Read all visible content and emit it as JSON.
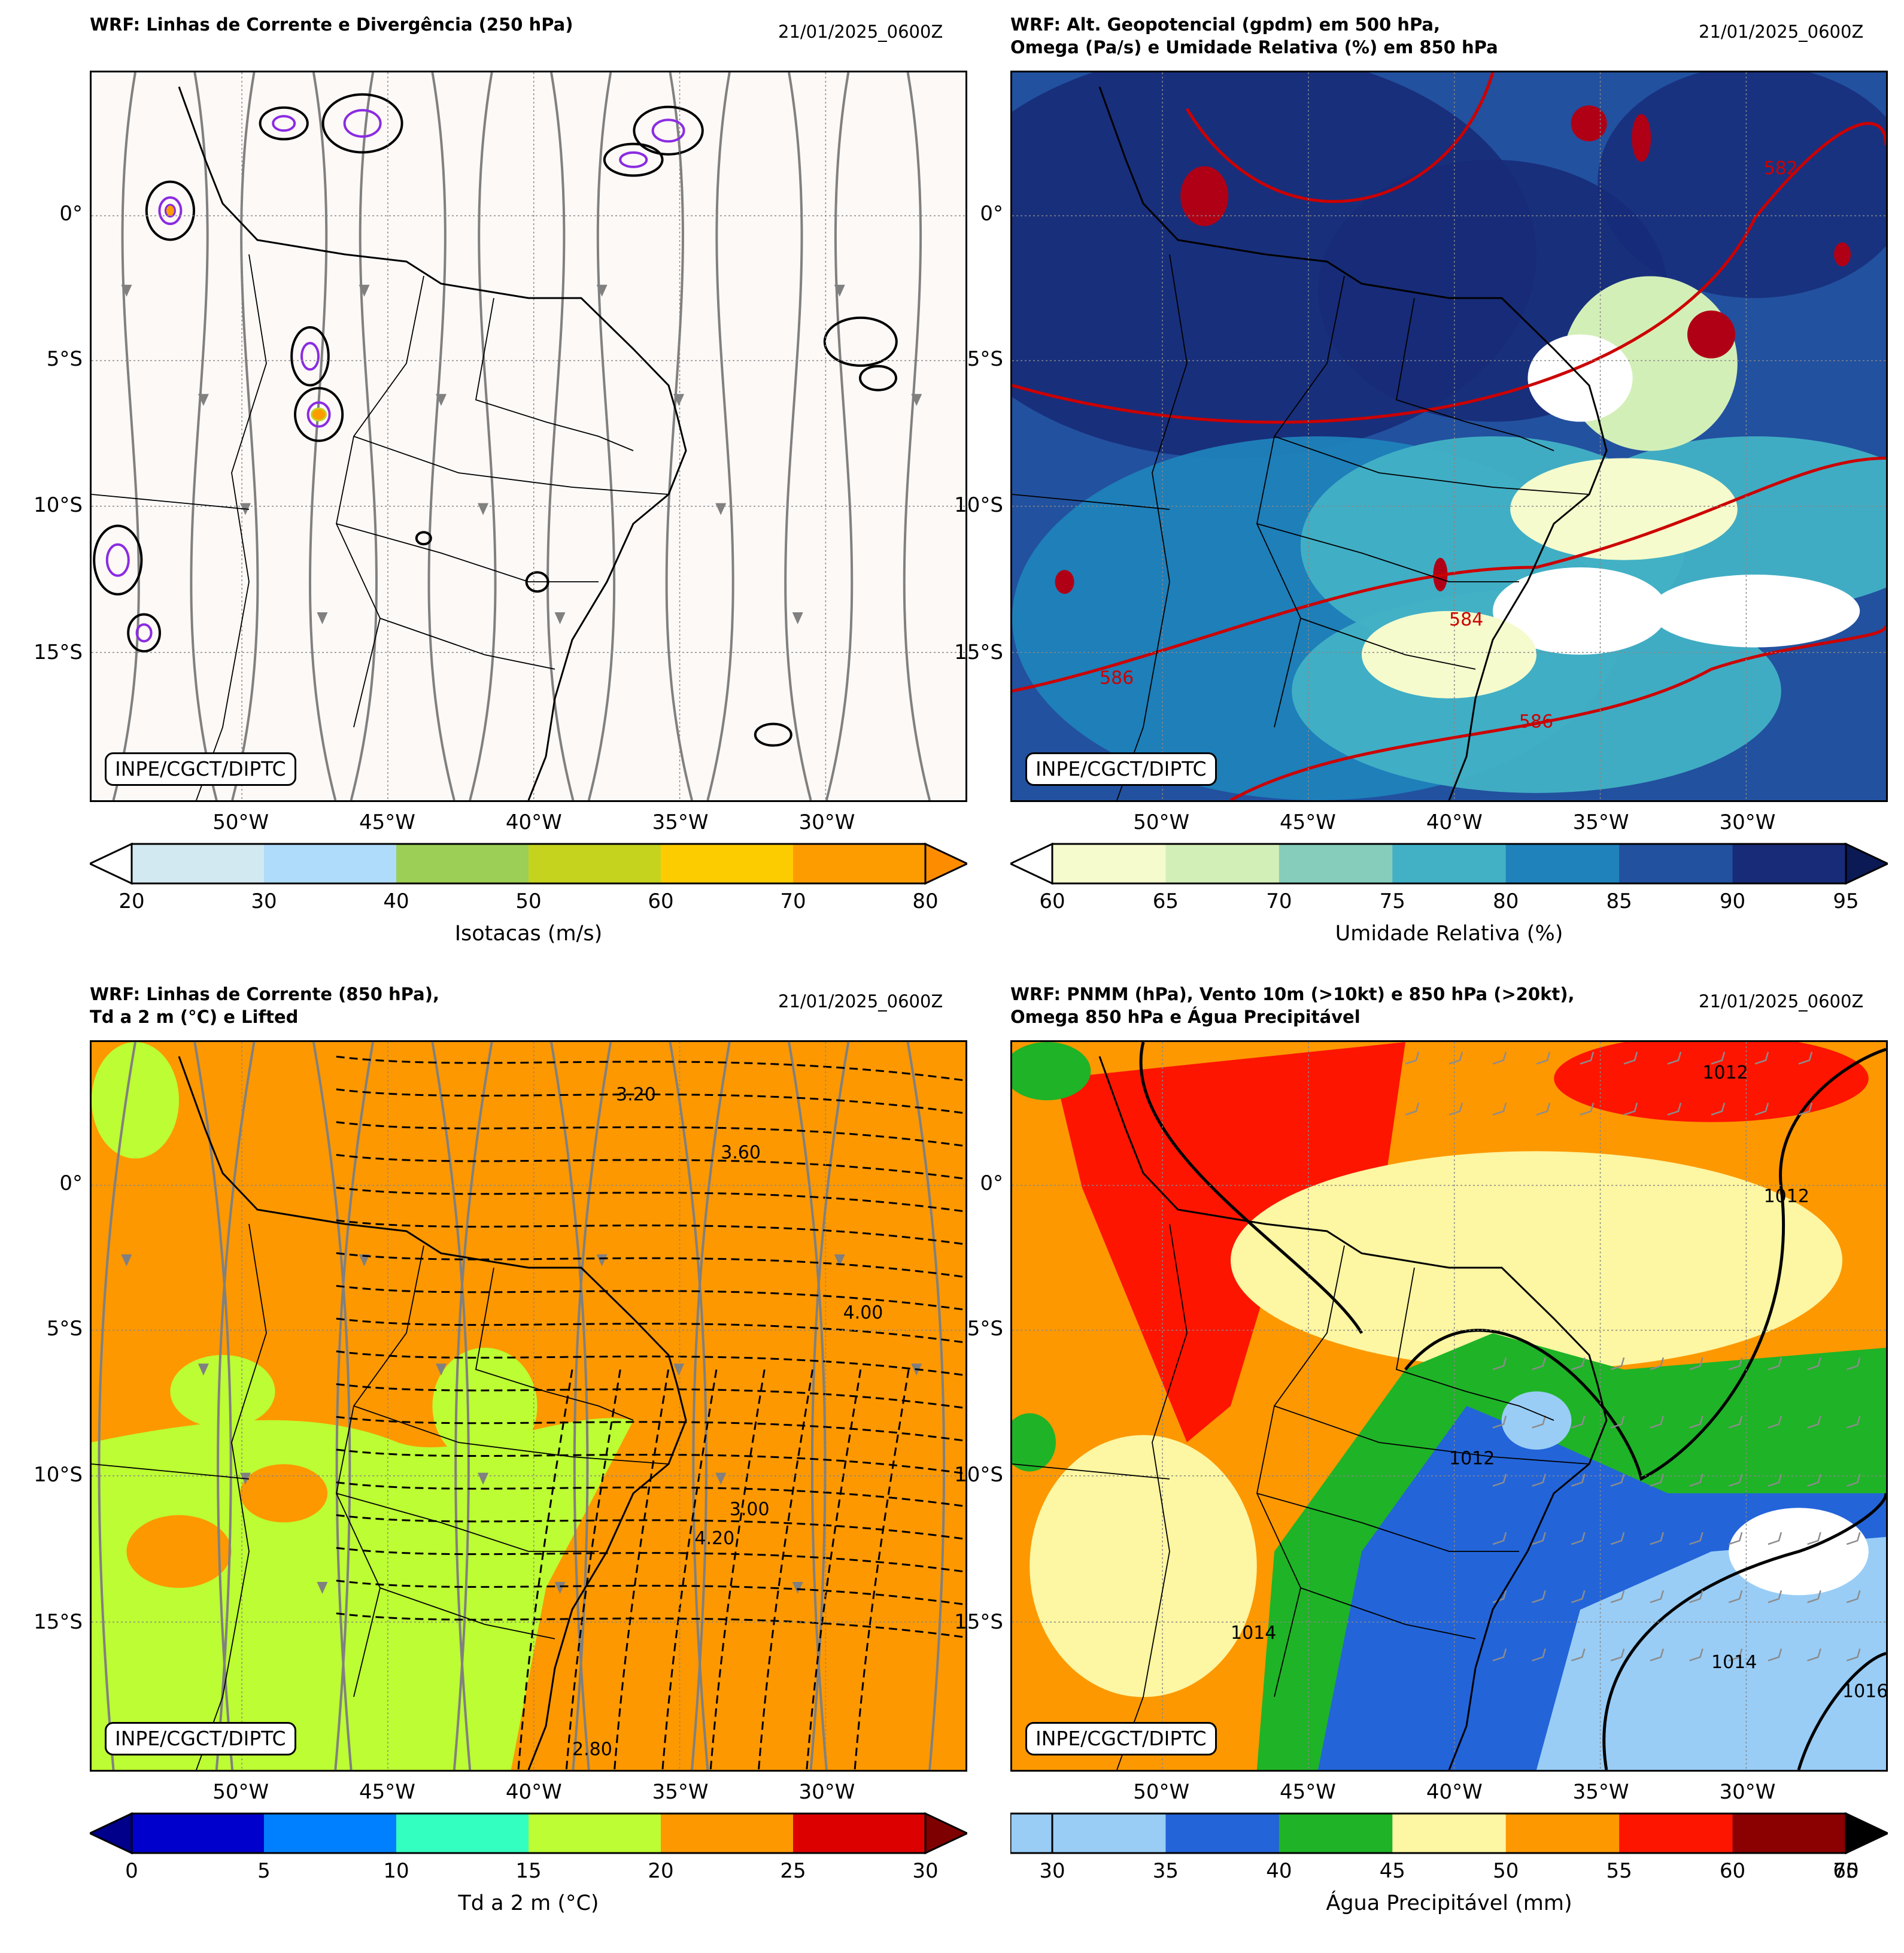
{
  "credit": "INPE/CGCT/DIPTC",
  "date": "21/01/2025_0600Z",
  "lat_labels": [
    "0°",
    "5°S",
    "10°S",
    "15°S"
  ],
  "lon_labels": [
    "50°W",
    "45°W",
    "40°W",
    "35°W",
    "30°W"
  ],
  "panels": [
    {
      "title": "WRF: Linhas de Corrente e Divergência (250 hPa)",
      "date": "21/01/2025_0600Z",
      "colorbar": {
        "label": "Isotacas (m/s)",
        "ticks": [
          "20",
          "30",
          "40",
          "50",
          "60",
          "70",
          "80"
        ],
        "colors": [
          "#d2e9f1",
          "#afdcfb",
          "#9ccf55",
          "#c5d31f",
          "#fdcc00",
          "#fd9c00"
        ],
        "under": "#ffffff",
        "over": "#fd8c00"
      },
      "contour_labels": []
    },
    {
      "title": "WRF: Alt. Geopotencial (gpdm) em 500 hPa,\nOmega (Pa/s) e Umidade Relativa (%) em 850 hPa",
      "date": "21/01/2025_0600Z",
      "colorbar": {
        "label": "Umidade Relativa (%)",
        "ticks": [
          "60",
          "65",
          "70",
          "75",
          "80",
          "85",
          "90",
          "95"
        ],
        "colors": [
          "#f5fbcd",
          "#d3efb8",
          "#86cdbb",
          "#42b1c5",
          "#1f82bb",
          "#22519f",
          "#172b78"
        ],
        "under": "#ffffff",
        "over": "#0b1a55"
      },
      "contour_labels": [
        "584",
        "586",
        "582",
        "586"
      ]
    },
    {
      "title": "WRF: Linhas de Corrente (850 hPa),\nTd a 2 m (°C) e Lifted",
      "date": "21/01/2025_0600Z",
      "colorbar": {
        "label": "Td a 2 m (°C)",
        "ticks": [
          "0",
          "5",
          "10",
          "15",
          "20",
          "25",
          "30"
        ],
        "colors": [
          "#0000cd",
          "#0080ff",
          "#33ffc1",
          "#bcfd33",
          "#fd9800",
          "#dd0000"
        ],
        "under": "#00008b",
        "over": "#7f0000"
      },
      "contour_labels": [
        "3.60",
        "3.20",
        "4.00",
        "2.80",
        "3.00",
        "4.20"
      ]
    },
    {
      "title": "WRF: PNMM (hPa), Vento 10m (>10kt) e 850 hPa (>20kt),\nOmega 850 hPa e Água Precipitável",
      "date": "21/01/2025_0600Z",
      "colorbar": {
        "label": "Água Precipitável (mm)",
        "ticks": [
          "30",
          "35",
          "40",
          "45",
          "50",
          "55",
          "60",
          "70"
        ],
        "colors": [
          "#99cdf6",
          "#2364d9",
          "#1fb327",
          "#fdf6a2",
          "#fd9800",
          "#fd1500",
          "#8b0000"
        ],
        "under": null,
        "over": "#000000"
      },
      "extra_tick": "65",
      "contour_labels": [
        "1012",
        "1012",
        "1014",
        "1016",
        "1012",
        "1014"
      ]
    }
  ]
}
